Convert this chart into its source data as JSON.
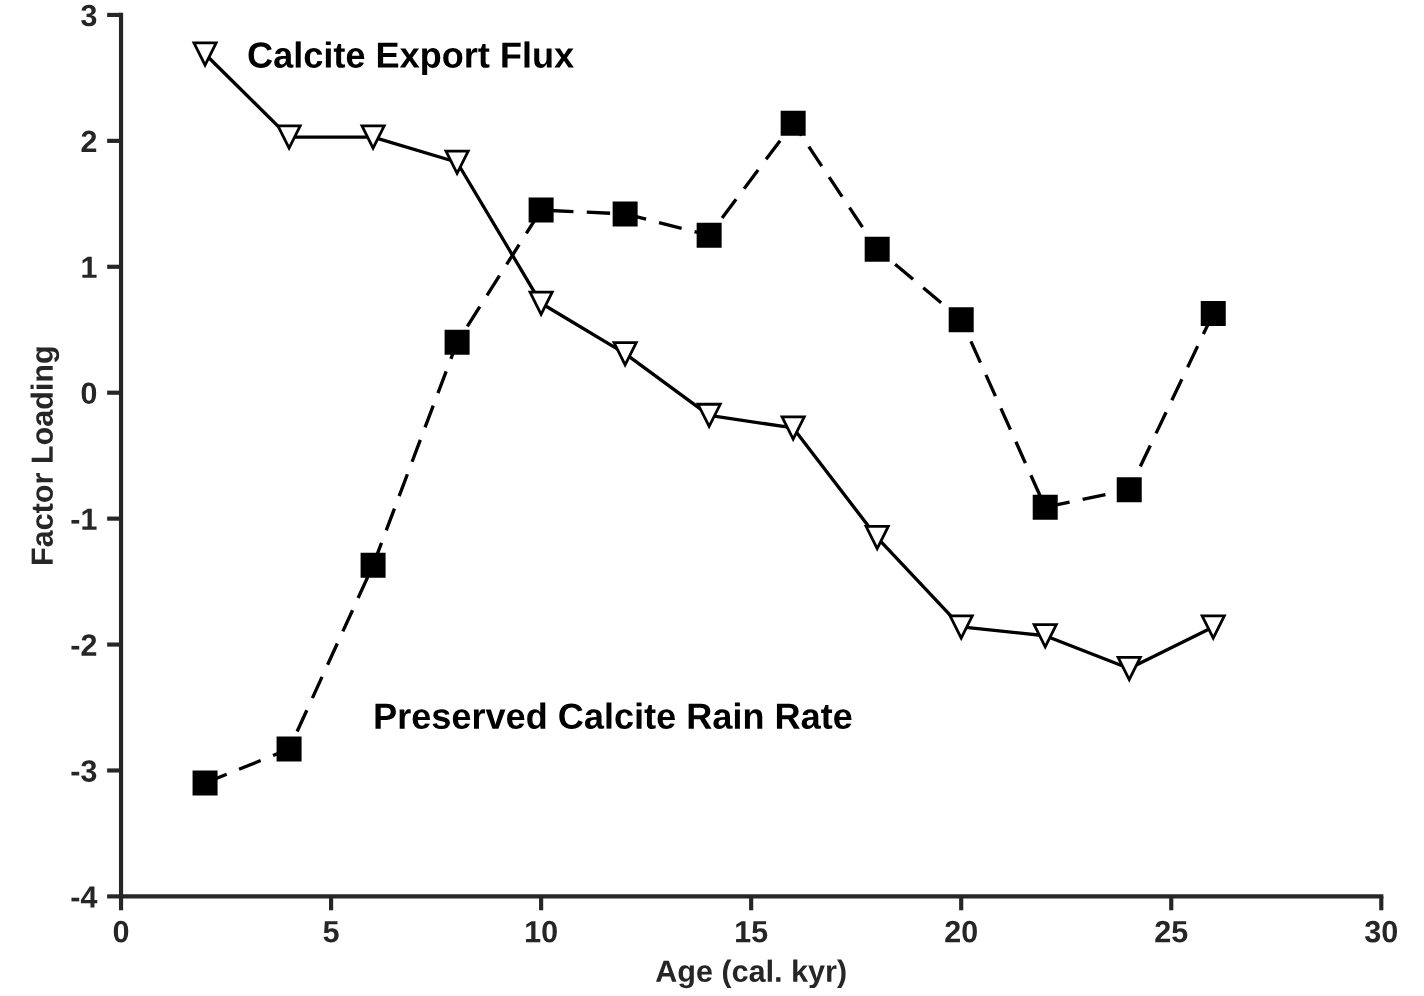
{
  "chart_data": {
    "type": "line",
    "xlabel": "Age (cal. kyr)",
    "ylabel": "Factor Loading",
    "xlim": [
      0,
      30
    ],
    "xticks": [
      0,
      5,
      10,
      15,
      20,
      25,
      30
    ],
    "ylim": [
      -4,
      3
    ],
    "yticks": [
      -4,
      -3,
      -2,
      -1,
      0,
      1,
      2,
      3
    ],
    "grid": false,
    "legend": false,
    "series": [
      {
        "name": "Calcite Export Flux",
        "color": "#000000",
        "marker": "triangle",
        "line_style": "solid",
        "x": [
          2,
          4,
          6,
          8,
          10,
          12,
          14,
          16,
          18,
          20,
          22,
          24,
          26
        ],
        "values": [
          2.69,
          2.03,
          2.03,
          1.83,
          0.71,
          0.31,
          -0.18,
          -0.28,
          -1.15,
          -1.86,
          -1.93,
          -2.19,
          -1.86
        ]
      },
      {
        "name": "Preserved Calcite Rain Rate",
        "color": "#000000",
        "marker": "square",
        "line_style": "dashed",
        "x": [
          2,
          4,
          6,
          8,
          10,
          12,
          14,
          16,
          18,
          20,
          22,
          24,
          26
        ],
        "values": [
          -3.1,
          -2.83,
          -1.37,
          0.4,
          1.45,
          1.42,
          1.25,
          2.14,
          1.14,
          0.58,
          -0.91,
          -0.77,
          0.63
        ]
      }
    ]
  }
}
